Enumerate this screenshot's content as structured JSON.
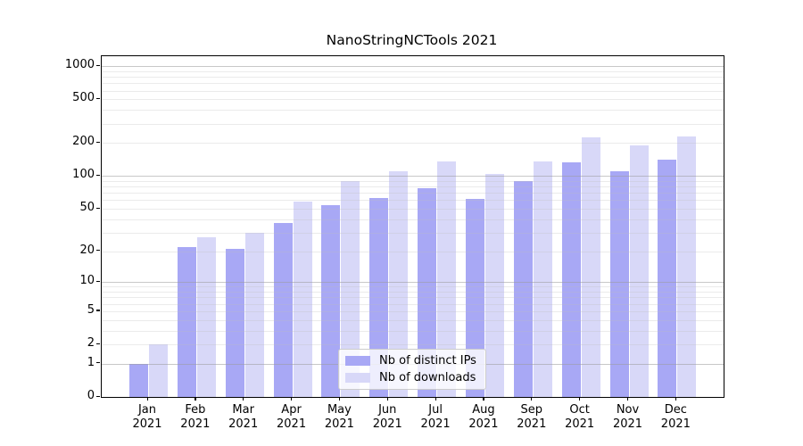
{
  "chart_data": {
    "type": "bar",
    "title": "NanoStringNCTools 2021",
    "categories": [
      "Jan",
      "Feb",
      "Mar",
      "Apr",
      "May",
      "Jun",
      "Jul",
      "Aug",
      "Sep",
      "Oct",
      "Nov",
      "Dec"
    ],
    "category_year": "2021",
    "series": [
      {
        "name": "Nb of distinct IPs",
        "color": "#a8a8f5",
        "values": [
          1,
          22,
          21,
          37,
          54,
          63,
          77,
          62,
          90,
          133,
          111,
          141
        ]
      },
      {
        "name": "Nb of downloads",
        "color": "#d8d8f8",
        "values": [
          2,
          27,
          30,
          58,
          90,
          110,
          135,
          105,
          137,
          225,
          190,
          230
        ]
      }
    ],
    "y_ticks": [
      0,
      1,
      2,
      5,
      10,
      20,
      50,
      100,
      200,
      500,
      1000
    ],
    "y_scale": "log10(1+y)",
    "ylim": [
      0,
      1000
    ],
    "grid": {
      "major_at": [
        1,
        10,
        100,
        1000
      ],
      "minor": "log steps 2-9 per decade",
      "orientation": "horizontal"
    },
    "legend_position": "bottom-center"
  }
}
